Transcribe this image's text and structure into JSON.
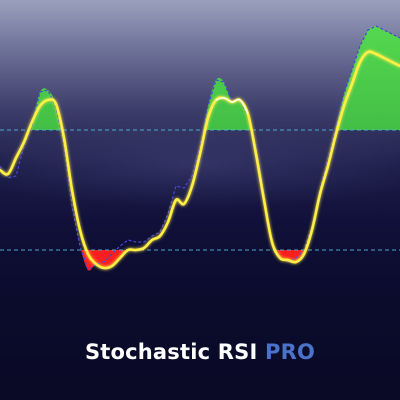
{
  "title": {
    "main": "Stochastic RSI",
    "accent": "PRO"
  },
  "colors": {
    "fast_line": "#ffee44",
    "slow_line": "#4646d8",
    "overbought_fill": "#3cc04a",
    "oversold_fill": "#e01818",
    "level_line": "#4fb8d8"
  },
  "chart_data": {
    "type": "line",
    "x": [
      0,
      1,
      2,
      3,
      4,
      5,
      6,
      7,
      8,
      9,
      10,
      11,
      12,
      13,
      14,
      15,
      16,
      17,
      18,
      19,
      20,
      21,
      22,
      23,
      24,
      25,
      26,
      27,
      28,
      29,
      30,
      31,
      32,
      33,
      34,
      35,
      36,
      37,
      38,
      39,
      40,
      41,
      42,
      43,
      44,
      45,
      46,
      47,
      48,
      49,
      50
    ],
    "ylim": [
      -20,
      145
    ],
    "levels": {
      "overbought": 80,
      "oversold": 20
    },
    "series": [
      {
        "values": [
          60,
          58,
          66,
          74,
          84,
          92,
          95,
          93,
          76,
          50,
          30,
          18,
          13,
          11,
          12,
          16,
          20,
          20,
          21,
          25,
          27,
          34,
          45,
          43,
          52,
          68,
          86,
          95,
          96,
          94,
          95,
          88,
          68,
          45,
          24,
          16,
          15,
          14,
          18,
          30,
          48,
          62,
          78,
          92,
          103,
          114,
          119,
          118,
          116,
          114,
          112
        ]
      },
      {
        "values": [
          62,
          56,
          57,
          72,
          82,
          99,
          100,
          91,
          72,
          42,
          22,
          10,
          13,
          14,
          18,
          22,
          25,
          24,
          24,
          27,
          29,
          38,
          52,
          51,
          57,
          72,
          92,
          105,
          104,
          94,
          95,
          87,
          72,
          48,
          24,
          16,
          14,
          16,
          20,
          32,
          50,
          66,
          82,
          98,
          110,
          122,
          130,
          132,
          130,
          128,
          126
        ]
      }
    ]
  }
}
